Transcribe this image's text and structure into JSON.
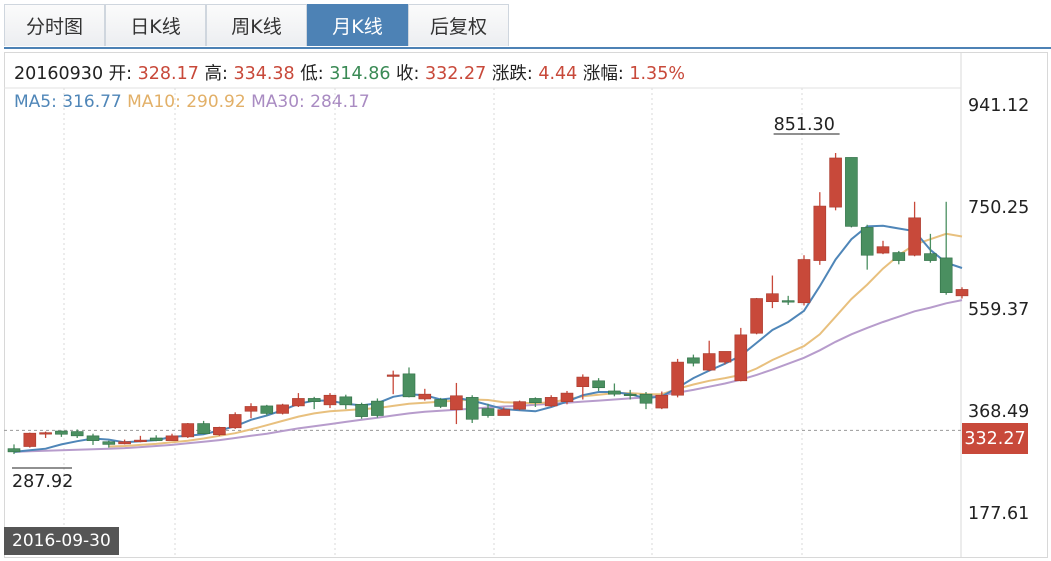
{
  "tabs": [
    {
      "label": "分时图",
      "active": false
    },
    {
      "label": "日K线",
      "active": false
    },
    {
      "label": "周K线",
      "active": false
    },
    {
      "label": "月K线",
      "active": true
    },
    {
      "label": "后复权",
      "active": false
    }
  ],
  "info": {
    "date": "20160930",
    "open_label": "开:",
    "open": "328.17",
    "high_label": "高:",
    "high": "334.38",
    "low_label": "低:",
    "low": "314.86",
    "close_label": "收:",
    "close": "332.27",
    "change_label": "涨跌:",
    "change": "4.44",
    "pct_label": "涨幅:",
    "pct": "1.35%"
  },
  "ma": {
    "ma5_label": "MA5:",
    "ma5": "316.77",
    "ma10_label": "MA10:",
    "ma10": "290.92",
    "ma30_label": "MA30:",
    "ma30": "284.17"
  },
  "current_date": "2016-09-30",
  "current_price": "332.27",
  "colors": {
    "up": "#c8493a",
    "down": "#4a8f60",
    "ma5": "#4f86b8",
    "ma10": "#e8c07e",
    "ma30": "#b79ccc",
    "accent": "#4d82b5"
  },
  "chart_data": {
    "type": "candlestick",
    "y_ticks": [
      "941.12",
      "750.25",
      "559.37",
      "368.49",
      "177.61"
    ],
    "ylim": [
      177.61,
      941.12
    ],
    "annotations": {
      "max_label": "851.30",
      "min_label": "287.92"
    },
    "candles": [
      [
        1,
        292,
        298,
        306,
        287.92
      ],
      [
        0,
        302,
        327,
        328,
        300
      ],
      [
        0,
        326,
        328,
        330,
        318
      ],
      [
        1,
        331,
        325,
        332,
        320
      ],
      [
        1,
        330,
        322,
        334,
        318
      ],
      [
        1,
        322,
        313,
        326,
        305
      ],
      [
        1,
        311,
        306,
        313,
        300
      ],
      [
        0,
        307,
        311,
        315,
        306
      ],
      [
        0,
        311,
        314,
        322,
        310
      ],
      [
        1,
        318,
        313,
        323,
        312
      ],
      [
        0,
        313,
        322,
        326,
        313
      ],
      [
        0,
        320,
        345,
        346,
        318
      ],
      [
        1,
        345,
        326,
        350,
        325
      ],
      [
        0,
        324,
        338,
        339,
        322
      ],
      [
        0,
        337,
        362,
        366,
        335
      ],
      [
        0,
        368,
        377,
        383,
        355
      ],
      [
        1,
        378,
        364,
        380,
        360
      ],
      [
        0,
        364,
        380,
        382,
        362
      ],
      [
        0,
        378,
        392,
        402,
        376
      ],
      [
        1,
        392,
        386,
        395,
        372
      ],
      [
        0,
        380,
        398,
        402,
        374
      ],
      [
        1,
        395,
        380,
        399,
        372
      ],
      [
        1,
        381,
        358,
        384,
        354
      ],
      [
        1,
        360,
        387,
        392,
        356
      ],
      [
        0,
        434,
        436,
        444,
        400
      ],
      [
        1,
        438,
        395,
        450,
        394
      ],
      [
        0,
        391,
        400,
        410,
        388
      ],
      [
        1,
        390,
        377,
        393,
        374
      ],
      [
        0,
        397,
        371,
        421,
        344
      ],
      [
        1,
        394,
        353,
        398,
        346
      ],
      [
        1,
        373,
        360,
        382,
        356
      ],
      [
        0,
        360,
        371,
        375,
        365
      ],
      [
        0,
        372,
        386,
        388,
        370
      ],
      [
        1,
        392,
        384,
        394,
        376
      ],
      [
        0,
        378,
        394,
        398,
        376
      ],
      [
        0,
        386,
        402,
        406,
        381
      ],
      [
        0,
        414,
        432,
        437,
        390
      ],
      [
        1,
        425,
        412,
        430,
        406
      ],
      [
        1,
        406,
        400,
        420,
        396
      ],
      [
        1,
        400,
        399,
        408,
        390
      ],
      [
        1,
        400,
        383,
        404,
        372
      ],
      [
        0,
        374,
        398,
        405,
        372
      ],
      [
        0,
        398,
        460,
        466,
        394
      ],
      [
        1,
        468,
        458,
        474,
        452
      ],
      [
        0,
        445,
        476,
        500,
        443
      ],
      [
        0,
        480,
        460,
        464,
        456
      ],
      [
        0,
        425,
        511,
        524,
        424
      ],
      [
        0,
        514,
        579,
        580,
        512
      ],
      [
        0,
        573,
        588,
        622,
        561
      ],
      [
        1,
        574,
        575,
        584,
        567
      ],
      [
        0,
        571,
        652,
        660,
        566
      ],
      [
        0,
        650,
        752,
        778,
        642
      ],
      [
        0,
        750,
        842,
        851.3,
        744
      ],
      [
        1,
        843,
        714,
        843,
        712
      ],
      [
        1,
        712,
        660,
        717,
        633
      ],
      [
        0,
        664,
        676,
        687,
        662
      ],
      [
        1,
        665,
        650,
        668,
        643
      ],
      [
        0,
        660,
        730,
        760,
        658
      ],
      [
        1,
        663,
        650,
        700,
        646
      ],
      [
        1,
        655,
        590,
        760,
        586
      ],
      [
        0,
        584,
        596,
        600,
        579
      ]
    ],
    "ma5": [
      292,
      295,
      298,
      306,
      312,
      317,
      315,
      310,
      312,
      314,
      320,
      322,
      325,
      332,
      340,
      352,
      360,
      370,
      382,
      388,
      388,
      382,
      379,
      383,
      395,
      400,
      398,
      390,
      393,
      388,
      380,
      372,
      370,
      368,
      376,
      386,
      398,
      404,
      404,
      400,
      392,
      396,
      412,
      430,
      444,
      457,
      472,
      496,
      520,
      535,
      556,
      602,
      652,
      690,
      714,
      715,
      710,
      705,
      670,
      646,
      636
    ],
    "ma10": [
      null,
      null,
      null,
      null,
      null,
      null,
      302,
      303,
      305,
      307,
      310,
      313,
      317,
      322,
      327,
      334,
      342,
      350,
      358,
      364,
      368,
      370,
      372,
      374,
      378,
      382,
      384,
      386,
      388,
      390,
      389,
      385,
      384,
      383,
      385,
      390,
      396,
      399,
      402,
      402,
      400,
      400,
      410,
      418,
      425,
      430,
      436,
      448,
      464,
      477,
      490,
      512,
      545,
      578,
      605,
      635,
      660,
      680,
      690,
      700,
      695
    ],
    "ma30": [
      292,
      293,
      294,
      295,
      296,
      297,
      298,
      299,
      301,
      303,
      305,
      308,
      311,
      314,
      318,
      322,
      326,
      331,
      336,
      340,
      344,
      348,
      352,
      356,
      360,
      364,
      367,
      369,
      371,
      373,
      375,
      377,
      378,
      380,
      382,
      384,
      386,
      388,
      390,
      392,
      394,
      398,
      403,
      408,
      414,
      420,
      427,
      436,
      446,
      457,
      468,
      482,
      498,
      512,
      524,
      535,
      545,
      555,
      562,
      570,
      576
    ]
  }
}
